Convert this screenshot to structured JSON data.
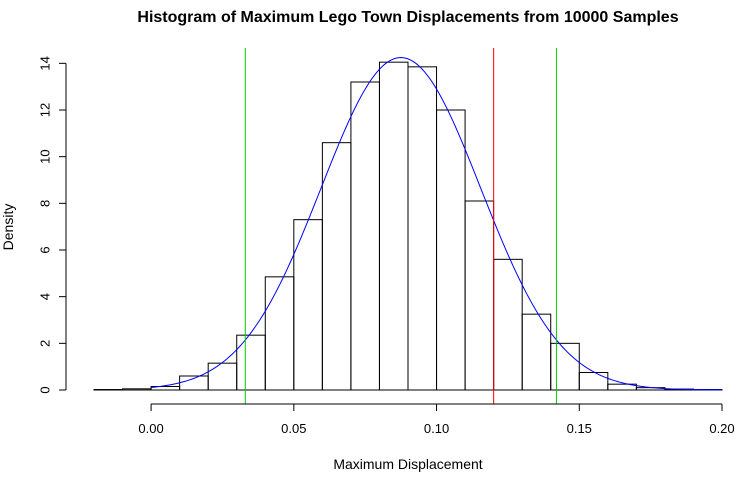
{
  "chart_data": {
    "type": "bar",
    "title": "Histogram of Maximum Lego Town Displacements from 10000 Samples",
    "xlabel": "Maximum Displacement",
    "ylabel": "Density",
    "xlim": [
      -0.02,
      0.2
    ],
    "ylim": [
      0,
      14.4
    ],
    "x_ticks": [
      0.0,
      0.05,
      0.1,
      0.15,
      0.2
    ],
    "x_tick_labels": [
      "0.00",
      "0.05",
      "0.10",
      "0.15",
      "0.20"
    ],
    "y_ticks": [
      0,
      2,
      4,
      6,
      8,
      10,
      12,
      14
    ],
    "y_tick_labels": [
      "0",
      "2",
      "4",
      "6",
      "8",
      "10",
      "12",
      "14"
    ],
    "grid": false,
    "bins": {
      "breaks": [
        -0.02,
        -0.01,
        0.0,
        0.01,
        0.02,
        0.03,
        0.04,
        0.05,
        0.06,
        0.07,
        0.08,
        0.09,
        0.1,
        0.11,
        0.12,
        0.13,
        0.14,
        0.15,
        0.16,
        0.17,
        0.18,
        0.19,
        0.2
      ],
      "density": [
        0.02,
        0.05,
        0.15,
        0.6,
        1.15,
        2.35,
        4.85,
        7.3,
        10.6,
        13.2,
        14.05,
        13.85,
        12.0,
        8.1,
        5.6,
        3.25,
        2.0,
        0.75,
        0.25,
        0.1,
        0.04,
        0.02
      ],
      "color": "#000000"
    },
    "density_curve": {
      "type": "normal",
      "mean": 0.0875,
      "sd": 0.028,
      "x_range": [
        0.0,
        0.2
      ],
      "color": "#0000ff"
    },
    "reference_lines": [
      {
        "x": 0.033,
        "color": "#00cc00"
      },
      {
        "x": 0.12,
        "color": "#ff0000"
      },
      {
        "x": 0.142,
        "color": "#00cc00"
      }
    ]
  }
}
